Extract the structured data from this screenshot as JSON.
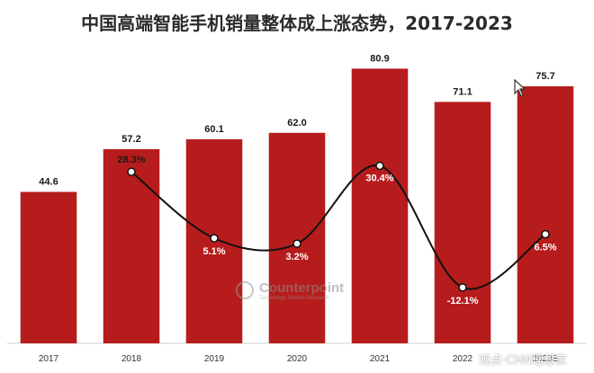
{
  "title": "中国高端智能手机销量整体成上涨态势，2017-2023",
  "watermark": {
    "brand": "Counterpoint",
    "tagline": "Technology Market Research"
  },
  "corner_mark": "观点·CHN理想家",
  "colors": {
    "bar": "#b71c1c",
    "line": "#111111",
    "axis": "#d0d0d0",
    "text": "#1a1a1a"
  },
  "chart_data": {
    "type": "bar",
    "categories": [
      "2017",
      "2018",
      "2019",
      "2020",
      "2021",
      "2022",
      "2023E"
    ],
    "series": [
      {
        "values": [
          44.6,
          57.2,
          60.1,
          62.0,
          80.9,
          71.1,
          75.7
        ],
        "labels": [
          "44.6",
          "57.2",
          "60.1",
          "62.0",
          "80.9",
          "71.1",
          "75.7"
        ]
      },
      {
        "type": "line",
        "secondary_axis": true,
        "values": [
          null,
          28.3,
          5.1,
          3.2,
          30.4,
          -12.1,
          6.5
        ],
        "labels": [
          "",
          "28.3%",
          "5.1%",
          "3.2%",
          "30.4%",
          "-12.1%",
          "6.5%"
        ]
      }
    ],
    "ylim": [
      0,
      90
    ],
    "y2lim": [
      -20,
      45
    ],
    "grid": false,
    "legend": "none",
    "xlabel": "",
    "ylabel": ""
  }
}
